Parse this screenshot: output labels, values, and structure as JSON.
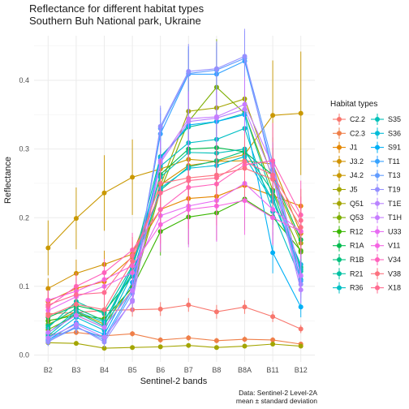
{
  "chart_data": {
    "type": "line",
    "title": "Reflectance for different habitat types",
    "subtitle": "Southern Buh National park, Ukraine",
    "xlabel": "Sentinel-2 bands",
    "ylabel": "Reflectance",
    "caption": [
      "Data: Sentinel-2 Level-2A",
      "mean ± standard deviation"
    ],
    "ylim": [
      -0.01,
      0.465
    ],
    "yticks": [
      0.0,
      0.1,
      0.2,
      0.3,
      0.4
    ],
    "ytick_labels": [
      "0.0",
      "0.1",
      "0.2",
      "0.3",
      "0.4"
    ],
    "categories": [
      "B2",
      "B3",
      "B4",
      "B5",
      "B6",
      "B7",
      "B8",
      "B8A",
      "B11",
      "B12"
    ],
    "grid": true,
    "legend": {
      "title": "Habitat types",
      "position": "right",
      "columns": 2
    },
    "series": [
      {
        "name": "C2.2",
        "color": "#F8766D",
        "values": [
          0.06,
          0.062,
          0.065,
          0.066,
          0.067,
          0.073,
          0.063,
          0.07,
          0.056,
          0.038
        ],
        "sd": [
          0.008,
          0.008,
          0.008,
          0.01,
          0.01,
          0.01,
          0.01,
          0.01,
          0.008,
          0.006
        ]
      },
      {
        "name": "C2.3",
        "color": "#EF7F49",
        "values": [
          0.03,
          0.033,
          0.028,
          0.031,
          0.022,
          0.025,
          0.021,
          0.023,
          0.022,
          0.016
        ],
        "sd": [
          0.004,
          0.004,
          0.004,
          0.004,
          0.004,
          0.004,
          0.004,
          0.004,
          0.004,
          0.003
        ]
      },
      {
        "name": "J1",
        "color": "#E58700",
        "values": [
          0.078,
          0.097,
          0.107,
          0.143,
          0.212,
          0.228,
          0.231,
          0.247,
          0.232,
          0.217
        ],
        "sd": [
          0.015,
          0.015,
          0.018,
          0.02,
          0.025,
          0.025,
          0.025,
          0.025,
          0.025,
          0.025
        ]
      },
      {
        "name": "J3.2",
        "color": "#D09200",
        "values": [
          0.097,
          0.119,
          0.132,
          0.147,
          0.248,
          0.276,
          0.282,
          0.283,
          0.278,
          0.177
        ],
        "sd": [
          0.015,
          0.02,
          0.02,
          0.025,
          0.03,
          0.03,
          0.03,
          0.03,
          0.03,
          0.025
        ]
      },
      {
        "name": "J4.2",
        "color": "#C99800",
        "values": [
          0.156,
          0.199,
          0.236,
          0.259,
          0.271,
          0.285,
          0.282,
          0.292,
          0.349,
          0.352
        ],
        "sd": [
          0.04,
          0.045,
          0.055,
          0.055,
          0.06,
          0.06,
          0.06,
          0.065,
          0.08,
          0.09
        ]
      },
      {
        "name": "J5",
        "color": "#A3A500",
        "values": [
          0.018,
          0.017,
          0.01,
          0.011,
          0.012,
          0.014,
          0.011,
          0.013,
          0.016,
          0.013
        ],
        "sd": [
          0.003,
          0.003,
          0.002,
          0.002,
          0.002,
          0.002,
          0.002,
          0.002,
          0.002,
          0.002
        ]
      },
      {
        "name": "Q51",
        "color": "#A3A500",
        "values": [
          0.045,
          0.063,
          0.045,
          0.1,
          0.247,
          0.355,
          0.36,
          0.373,
          0.257,
          0.163
        ],
        "sd": [
          0.015,
          0.015,
          0.015,
          0.03,
          0.06,
          0.09,
          0.095,
          0.085,
          0.06,
          0.04
        ]
      },
      {
        "name": "Q53",
        "color": "#7CAE00",
        "values": [
          0.037,
          0.058,
          0.04,
          0.095,
          0.24,
          0.34,
          0.39,
          0.352,
          0.24,
          0.15
        ],
        "sd": [
          0.01,
          0.012,
          0.012,
          0.025,
          0.04,
          0.06,
          0.07,
          0.06,
          0.05,
          0.04
        ]
      },
      {
        "name": "R12",
        "color": "#39B600",
        "values": [
          0.05,
          0.058,
          0.053,
          0.098,
          0.18,
          0.201,
          0.207,
          0.227,
          0.201,
          0.152
        ],
        "sd": [
          0.012,
          0.012,
          0.012,
          0.02,
          0.035,
          0.04,
          0.04,
          0.045,
          0.04,
          0.035
        ]
      },
      {
        "name": "R1A",
        "color": "#00BB4E",
        "values": [
          0.055,
          0.072,
          0.063,
          0.115,
          0.263,
          0.3,
          0.302,
          0.296,
          0.262,
          0.168
        ],
        "sd": [
          0.012,
          0.014,
          0.014,
          0.02,
          0.04,
          0.05,
          0.05,
          0.05,
          0.04,
          0.03
        ]
      },
      {
        "name": "R1B",
        "color": "#00BF7D",
        "values": [
          0.043,
          0.068,
          0.05,
          0.12,
          0.24,
          0.274,
          0.283,
          0.297,
          0.238,
          0.128
        ],
        "sd": [
          0.01,
          0.012,
          0.012,
          0.02,
          0.035,
          0.045,
          0.045,
          0.045,
          0.035,
          0.025
        ]
      },
      {
        "name": "R21",
        "color": "#00C1A3",
        "values": [
          0.04,
          0.078,
          0.06,
          0.13,
          0.289,
          0.332,
          0.34,
          0.352,
          0.23,
          0.122
        ],
        "sd": [
          0.01,
          0.012,
          0.012,
          0.02,
          0.04,
          0.05,
          0.05,
          0.05,
          0.04,
          0.025
        ]
      },
      {
        "name": "R36",
        "color": "#00BFC4",
        "values": [
          0.032,
          0.064,
          0.048,
          0.128,
          0.275,
          0.309,
          0.314,
          0.33,
          0.209,
          0.11
        ],
        "sd": [
          0.01,
          0.012,
          0.012,
          0.02,
          0.035,
          0.045,
          0.045,
          0.045,
          0.035,
          0.025
        ]
      },
      {
        "name": "S35",
        "color": "#00C0B8",
        "values": [
          0.028,
          0.062,
          0.042,
          0.127,
          0.259,
          0.295,
          0.294,
          0.3,
          0.225,
          0.125
        ],
        "sd": [
          0.01,
          0.012,
          0.012,
          0.02,
          0.035,
          0.045,
          0.045,
          0.045,
          0.035,
          0.025
        ]
      },
      {
        "name": "S36",
        "color": "#00BCD8",
        "values": [
          0.025,
          0.055,
          0.036,
          0.118,
          0.243,
          0.272,
          0.276,
          0.289,
          0.224,
          0.132
        ],
        "sd": [
          0.008,
          0.01,
          0.01,
          0.018,
          0.03,
          0.04,
          0.04,
          0.04,
          0.03,
          0.022
        ]
      },
      {
        "name": "S91",
        "color": "#00B0F6",
        "values": [
          0.022,
          0.047,
          0.03,
          0.106,
          0.287,
          0.335,
          0.34,
          0.35,
          0.149,
          0.07
        ],
        "sd": [
          0.008,
          0.01,
          0.01,
          0.018,
          0.035,
          0.045,
          0.045,
          0.045,
          0.03,
          0.015
        ]
      },
      {
        "name": "T11",
        "color": "#35A2FF",
        "values": [
          0.02,
          0.04,
          0.025,
          0.095,
          0.322,
          0.409,
          0.409,
          0.428,
          0.27,
          0.108
        ],
        "sd": [
          0.006,
          0.008,
          0.008,
          0.015,
          0.03,
          0.04,
          0.04,
          0.04,
          0.03,
          0.02
        ]
      },
      {
        "name": "T13",
        "color": "#619CFF",
        "values": [
          0.022,
          0.041,
          0.022,
          0.09,
          0.33,
          0.41,
          0.415,
          0.432,
          0.28,
          0.115
        ],
        "sd": [
          0.006,
          0.008,
          0.008,
          0.015,
          0.03,
          0.04,
          0.04,
          0.04,
          0.03,
          0.02
        ]
      },
      {
        "name": "T19",
        "color": "#9590FF",
        "values": [
          0.019,
          0.042,
          0.019,
          0.08,
          0.333,
          0.413,
          0.417,
          0.435,
          0.262,
          0.103
        ],
        "sd": [
          0.006,
          0.008,
          0.008,
          0.015,
          0.03,
          0.04,
          0.04,
          0.04,
          0.03,
          0.02
        ]
      },
      {
        "name": "T1E",
        "color": "#B983FF",
        "values": [
          0.025,
          0.045,
          0.026,
          0.078,
          0.28,
          0.34,
          0.345,
          0.358,
          0.26,
          0.095
        ],
        "sd": [
          0.006,
          0.008,
          0.008,
          0.015,
          0.03,
          0.04,
          0.04,
          0.04,
          0.03,
          0.02
        ]
      },
      {
        "name": "T1H",
        "color": "#C77CFF",
        "values": [
          0.033,
          0.058,
          0.04,
          0.094,
          0.283,
          0.344,
          0.347,
          0.365,
          0.276,
          0.116
        ],
        "sd": [
          0.008,
          0.01,
          0.01,
          0.015,
          0.03,
          0.04,
          0.04,
          0.04,
          0.03,
          0.02
        ]
      },
      {
        "name": "U33",
        "color": "#E76BF3",
        "values": [
          0.065,
          0.085,
          0.1,
          0.12,
          0.203,
          0.217,
          0.225,
          0.25,
          0.212,
          0.18
        ],
        "sd": [
          0.015,
          0.015,
          0.02,
          0.02,
          0.05,
          0.06,
          0.06,
          0.05,
          0.05,
          0.05
        ]
      },
      {
        "name": "V11",
        "color": "#F564E3",
        "values": [
          0.08,
          0.093,
          0.11,
          0.13,
          0.19,
          0.212,
          0.217,
          0.225,
          0.2,
          0.18
        ],
        "sd": [
          0.015,
          0.015,
          0.02,
          0.02,
          0.04,
          0.05,
          0.05,
          0.05,
          0.04,
          0.04
        ]
      },
      {
        "name": "V34",
        "color": "#FF62BC",
        "values": [
          0.07,
          0.1,
          0.12,
          0.153,
          0.212,
          0.244,
          0.249,
          0.277,
          0.283,
          0.204
        ],
        "sd": [
          0.015,
          0.02,
          0.02,
          0.025,
          0.05,
          0.06,
          0.06,
          0.055,
          0.055,
          0.05
        ]
      },
      {
        "name": "V38",
        "color": "#FC717F",
        "values": [
          0.057,
          0.074,
          0.066,
          0.137,
          0.25,
          0.258,
          0.262,
          0.272,
          0.256,
          0.186
        ],
        "sd": [
          0.012,
          0.015,
          0.015,
          0.02,
          0.035,
          0.04,
          0.04,
          0.04,
          0.04,
          0.035
        ]
      },
      {
        "name": "X18",
        "color": "#FF6C91",
        "values": [
          0.073,
          0.088,
          0.091,
          0.145,
          0.236,
          0.254,
          0.258,
          0.282,
          0.262,
          0.196
        ],
        "sd": [
          0.015,
          0.015,
          0.015,
          0.02,
          0.035,
          0.04,
          0.04,
          0.04,
          0.04,
          0.035
        ]
      }
    ]
  }
}
